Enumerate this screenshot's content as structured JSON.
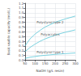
{
  "chart_data": {
    "type": "line",
    "xlabel": "NaOH (g/L resin)",
    "ylabel": "Basic usable capacity (mol/L)",
    "x": [
      50,
      75,
      100,
      125,
      150,
      175,
      200,
      250,
      300
    ],
    "series": [
      {
        "name": "Polystyrol type 2",
        "color": "#5bc8d8",
        "values": [
          0.3,
          0.45,
          0.55,
          0.63,
          0.7,
          0.75,
          0.8,
          0.87,
          0.93
        ]
      },
      {
        "name": "Polyacrylics",
        "color": "#5bc8d8",
        "values": [
          0.18,
          0.27,
          0.34,
          0.4,
          0.45,
          0.49,
          0.53,
          0.59,
          0.64
        ]
      },
      {
        "name": "Polystyrol type 1",
        "color": "#5bc8d8",
        "values": [
          0.04,
          0.065,
          0.08,
          0.095,
          0.105,
          0.115,
          0.125,
          0.14,
          0.155
        ]
      }
    ],
    "xlim": [
      50,
      300
    ],
    "xticks": [
      50,
      100,
      150,
      200,
      250,
      300
    ],
    "ylim": [
      0,
      1.2
    ],
    "yticks": [
      {
        "value": 0,
        "label": "0.0"
      },
      0.1,
      0.2,
      0.3,
      0.4,
      0.5,
      0.6,
      0.7,
      0.8,
      0.9,
      {
        "value": 1,
        "label": "1.0"
      },
      1.1,
      1.2
    ],
    "grid": true
  }
}
